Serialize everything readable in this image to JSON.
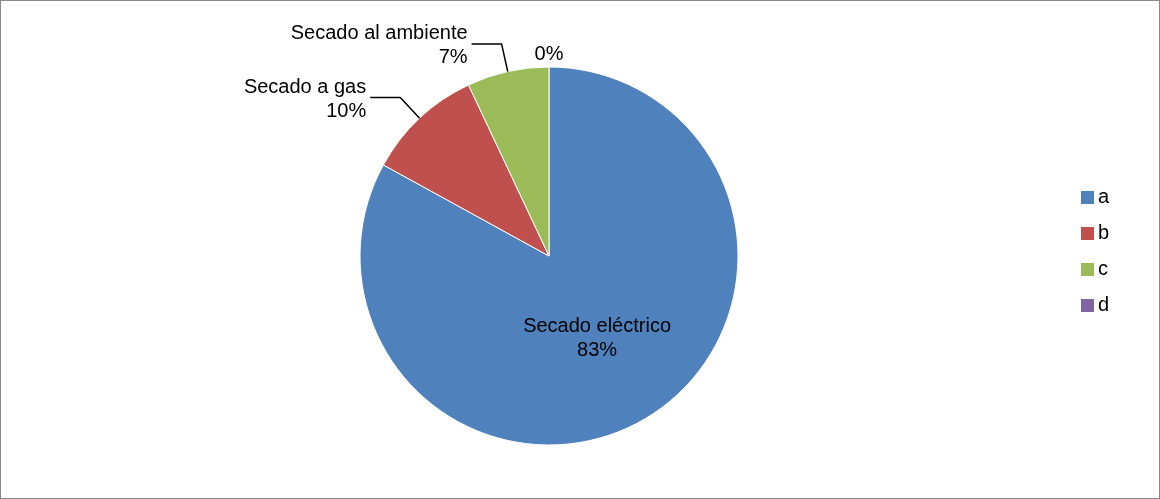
{
  "chart_data": {
    "type": "pie",
    "categories": [
      "a",
      "b",
      "c",
      "d"
    ],
    "values": [
      83,
      10,
      7,
      0
    ],
    "colors": [
      "#4f81bd",
      "#c0504d",
      "#9bbb59",
      "#8064a2"
    ],
    "value_labels": [
      "Secado eléctrico\n83%",
      "Secado a gas\n10%",
      "Secado al ambiente\n7%",
      "0%"
    ],
    "legend": "right"
  }
}
